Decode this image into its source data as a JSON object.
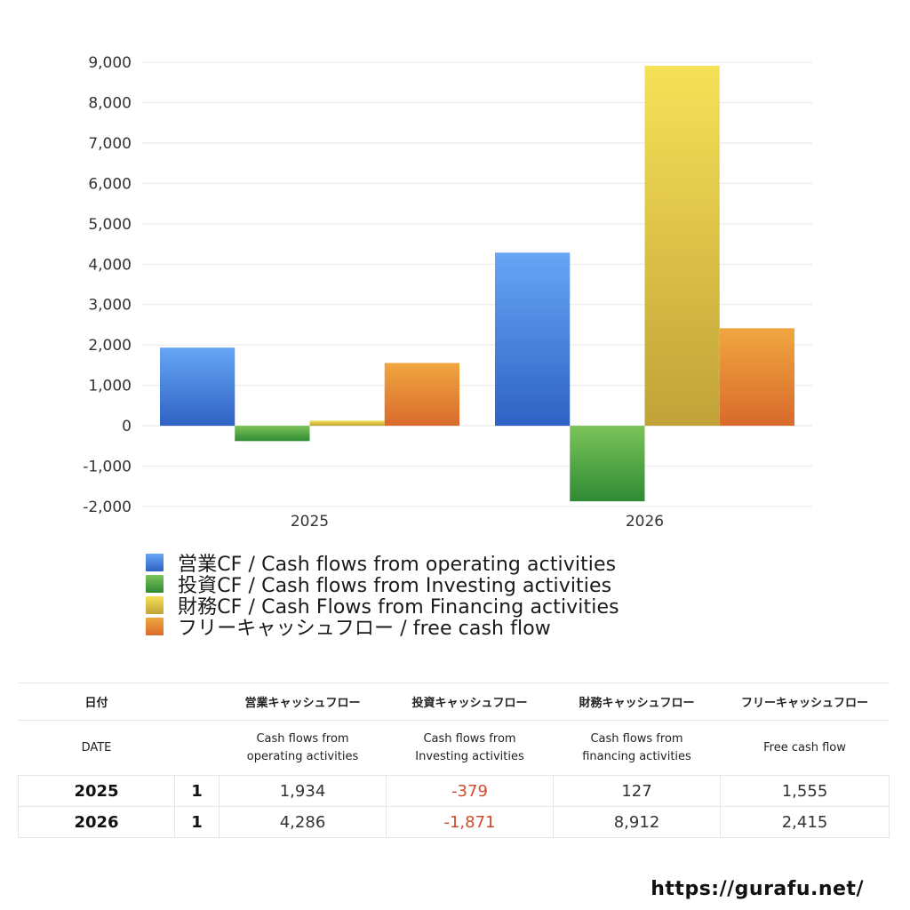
{
  "chart_data": {
    "type": "bar",
    "categories": [
      "2025",
      "2026"
    ],
    "ylim": [
      -2000,
      9000
    ],
    "yticks": [
      9000,
      8000,
      7000,
      6000,
      5000,
      4000,
      3000,
      2000,
      1000,
      0,
      -1000,
      -2000
    ],
    "ytick_labels": [
      "9,000",
      "8,000",
      "7,000",
      "6,000",
      "5,000",
      "4,000",
      "3,000",
      "2,000",
      "1,000",
      "0",
      "-1,000",
      "-2,000"
    ],
    "grid": true,
    "legend_position": "bottom",
    "series": [
      {
        "name": "営業CF / Cash flows from operating activities",
        "values": [
          1934,
          4286
        ],
        "color_top": "#66a6f5",
        "color_bottom": "#2f62c4"
      },
      {
        "name": "投資CF / Cash flows from Investing activities",
        "values": [
          -379,
          -1871
        ],
        "color_top": "#7cc45a",
        "color_bottom": "#2f8a34"
      },
      {
        "name": "財務CF / Cash Flows from Financing activities",
        "values": [
          127,
          8912
        ],
        "color_top": "#f7e158",
        "color_bottom": "#c0a238"
      },
      {
        "name": "フリーキャッシュフロー / free cash flow",
        "values": [
          1555,
          2415
        ],
        "color_top": "#f0a640",
        "color_bottom": "#d96a2c"
      }
    ]
  },
  "table": {
    "header_ja": [
      "日付",
      "",
      "営業キャッシュフロー",
      "投資キャッシュフロー",
      "財務キャッシュフロー",
      "フリーキャッシュフロー"
    ],
    "header_en": [
      "DATE",
      "",
      "Cash flows from\noperating activities",
      "Cash flows from\nInvesting activities",
      "Cash flows from\nfinancing activities",
      "Free cash flow"
    ],
    "rows": [
      {
        "year": "2025",
        "count": "1",
        "operating": "1,934",
        "investing": "-379",
        "financing": "127",
        "free": "1,555"
      },
      {
        "year": "2026",
        "count": "1",
        "operating": "4,286",
        "investing": "-1,871",
        "financing": "8,912",
        "free": "2,415"
      }
    ],
    "negative_color": "#d14a2b"
  },
  "footer": {
    "url": "https://gurafu.net/"
  }
}
